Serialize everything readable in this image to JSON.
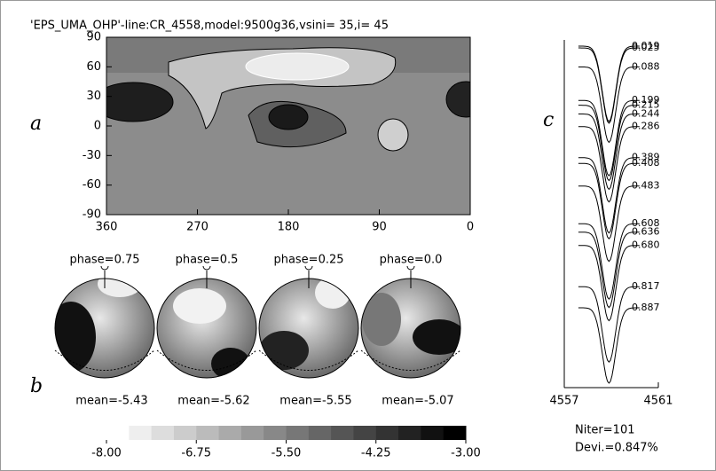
{
  "title": "'EPS_UMA_OHP'-line:CR_4558,model:9500g36,vsini= 35,i= 45",
  "chart_data": [
    {
      "type": "map",
      "label": "a",
      "xlim": [
        360,
        0
      ],
      "ylim": [
        -90,
        90
      ],
      "xticks": [
        360,
        270,
        180,
        90,
        0
      ],
      "yticks": [
        90,
        60,
        30,
        0,
        -30,
        -60,
        -90
      ]
    },
    {
      "type": "spheres",
      "label": "b",
      "titles": [
        "phase=0.75",
        "phase=0.5",
        "phase=0.25",
        "phase=0.0"
      ],
      "subtitles": [
        "mean=-5.43",
        "mean=-5.62",
        "mean=-5.55",
        "mean=-5.07"
      ]
    },
    {
      "type": "colorbar",
      "xlim": [
        -8,
        -3
      ],
      "xticks": [
        {
          "value": -8,
          "label": "-8.00"
        },
        {
          "value": -6.75,
          "label": "-6.75"
        },
        {
          "value": -5.5,
          "label": "-5.50"
        },
        {
          "value": -4.25,
          "label": "-4.25"
        },
        {
          "value": -3,
          "label": "-3.00"
        }
      ]
    },
    {
      "type": "profiles",
      "label": "c",
      "xlim": [
        4557,
        4561
      ],
      "xticks": [
        4557,
        4561
      ],
      "values": [
        0.019,
        0.025,
        0.088,
        0.199,
        0.215,
        0.244,
        0.286,
        0.389,
        0.408,
        0.483,
        0.608,
        0.636,
        0.68,
        0.817,
        0.887
      ],
      "value_labels": [
        "0.019",
        "0.025",
        "0.088",
        "0.199",
        "0.215",
        "0.244",
        "0.286",
        "0.389",
        "0.408",
        "0.483",
        "0.608",
        "0.636",
        "0.680",
        "0.817",
        "0.887"
      ],
      "notes": [
        "Niter=101",
        "Devi.=0.847%"
      ]
    }
  ]
}
